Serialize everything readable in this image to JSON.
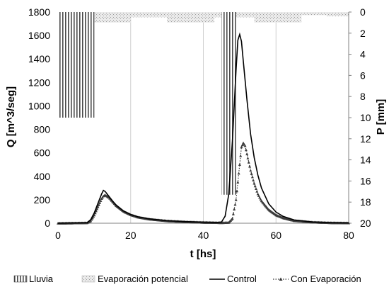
{
  "chart_data": {
    "type": "line",
    "title": "",
    "xlabel": "t [hs]",
    "ylabel_left": "Q [m^3/seg]",
    "ylabel_right": "P [mm]",
    "xlim": [
      0,
      80
    ],
    "ylim_left": [
      0,
      1800
    ],
    "ylim_right": [
      0,
      20
    ],
    "right_axis_inverted": true,
    "x_ticks": [
      0,
      20,
      40,
      60,
      80
    ],
    "y_left_ticks": [
      0,
      200,
      400,
      600,
      800,
      1000,
      1200,
      1400,
      1600,
      1800
    ],
    "y_right_ticks": [
      0,
      2,
      4,
      6,
      8,
      10,
      12,
      14,
      16,
      18,
      20
    ],
    "grid": "vertical",
    "legend_position": "bottom",
    "colors": {
      "lluvia": "#555555",
      "evaporacion": "#c8c8c8",
      "control": "#000000",
      "con_evaporacion": "#333333",
      "grid": "#d0d0d0",
      "axis": "#808080"
    },
    "series": [
      {
        "name": "Lluvia",
        "kind": "bar",
        "axis": "right",
        "bars": [
          {
            "x_start": 0,
            "x_end": 10,
            "value": 10
          },
          {
            "x_start": 45,
            "x_end": 49,
            "value": 17.3
          }
        ]
      },
      {
        "name": "Evaporación potencial",
        "kind": "bar",
        "axis": "right",
        "bars": [
          {
            "x_start": 0,
            "x_end": 4,
            "value": 0.8
          },
          {
            "x_start": 4,
            "x_end": 10,
            "value": 1.0
          },
          {
            "x_start": 10,
            "x_end": 20,
            "value": 1.0
          },
          {
            "x_start": 20,
            "x_end": 30,
            "value": 0.5
          },
          {
            "x_start": 30,
            "x_end": 43,
            "value": 1.0
          },
          {
            "x_start": 43,
            "x_end": 46,
            "value": 0.5
          },
          {
            "x_start": 46,
            "x_end": 54,
            "value": 0.5
          },
          {
            "x_start": 54,
            "x_end": 67,
            "value": 1.0
          },
          {
            "x_start": 67,
            "x_end": 74,
            "value": 0.3
          },
          {
            "x_start": 74,
            "x_end": 80,
            "value": 0.4
          }
        ]
      },
      {
        "name": "Control",
        "kind": "line",
        "axis": "left",
        "x": [
          0,
          8,
          9,
          10,
          11,
          12,
          12.5,
          13,
          14,
          15,
          16,
          18,
          20,
          22,
          25,
          30,
          35,
          40,
          44,
          45,
          46,
          47,
          48,
          49,
          49.5,
          50,
          50.5,
          51,
          52,
          53,
          54,
          55,
          56,
          58,
          60,
          62,
          65,
          70,
          75,
          80
        ],
        "y": [
          0,
          5,
          30,
          90,
          170,
          250,
          280,
          270,
          230,
          190,
          155,
          105,
          75,
          55,
          38,
          22,
          14,
          9,
          7,
          10,
          60,
          250,
          700,
          1300,
          1560,
          1610,
          1550,
          1380,
          1050,
          760,
          560,
          410,
          300,
          165,
          95,
          58,
          28,
          11,
          5,
          3
        ]
      },
      {
        "name": "Con Evaporación",
        "kind": "line",
        "axis": "left",
        "x": [
          0,
          8,
          9,
          10,
          11,
          12,
          12.5,
          13,
          14,
          15,
          16,
          18,
          20,
          22,
          25,
          30,
          35,
          40,
          45,
          47,
          48,
          49,
          50,
          50.5,
          51,
          51.5,
          52,
          53,
          54,
          55,
          56,
          58,
          60,
          62,
          65,
          70,
          75,
          80
        ],
        "y": [
          0,
          3,
          20,
          70,
          140,
          210,
          232,
          240,
          220,
          185,
          150,
          102,
          72,
          52,
          35,
          20,
          12,
          7,
          4,
          6,
          40,
          200,
          500,
          650,
          685,
          660,
          590,
          450,
          340,
          250,
          190,
          115,
          70,
          45,
          22,
          9,
          4,
          2
        ]
      }
    ]
  },
  "legend": {
    "items": [
      {
        "label": "Lluvia"
      },
      {
        "label": "Evaporación potencial"
      },
      {
        "label": "Control"
      },
      {
        "label": "Con Evaporación"
      }
    ]
  }
}
